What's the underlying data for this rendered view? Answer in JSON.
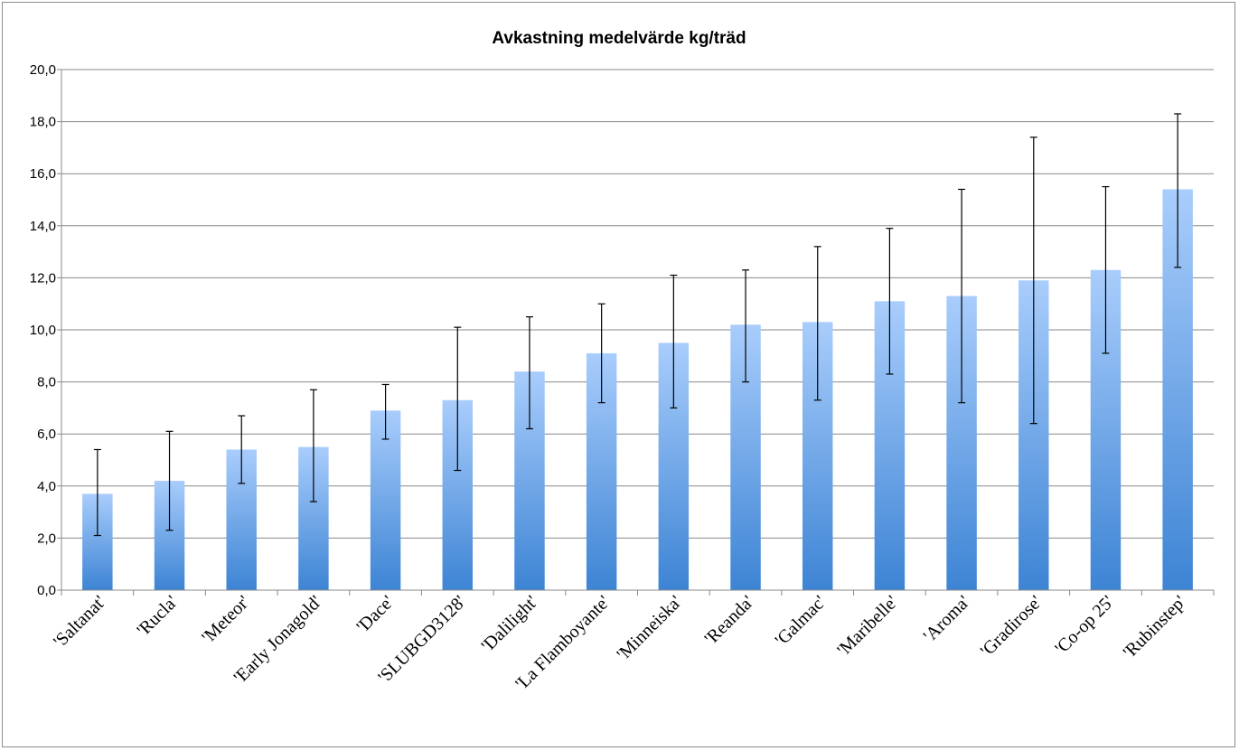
{
  "chart_data": {
    "type": "bar",
    "title": "Avkastning medelvärde kg/träd",
    "xlabel": "",
    "ylabel": "",
    "ylim": [
      0,
      20
    ],
    "ytick_step": 2,
    "ytick_labels": [
      "0,0",
      "2,0",
      "4,0",
      "6,0",
      "8,0",
      "10,0",
      "12,0",
      "14,0",
      "16,0",
      "18,0",
      "20,0"
    ],
    "grid": true,
    "legend": "none",
    "categories": [
      "'Saltanat'",
      "'Rucla'",
      "'Meteor'",
      "'Early Jonagold'",
      "'Dace'",
      "'SLUBGD3128'",
      "'Dalilight'",
      "'La Flamboyante'",
      "'Minneiska'",
      "'Reanda'",
      "'Galmac'",
      "'Maribelle'",
      "'Aroma'",
      "'Gradirose'",
      "'Co-op 25'",
      "'Rubinstep'"
    ],
    "values": [
      3.7,
      4.2,
      5.4,
      5.5,
      6.9,
      7.3,
      8.4,
      9.1,
      9.5,
      10.2,
      10.3,
      11.1,
      11.3,
      11.9,
      12.3,
      15.4
    ],
    "error_low": [
      2.1,
      2.3,
      4.1,
      3.4,
      5.8,
      4.6,
      6.2,
      7.2,
      7.0,
      8.0,
      7.3,
      8.3,
      7.2,
      6.4,
      9.1,
      12.4
    ],
    "error_high": [
      5.4,
      6.1,
      6.7,
      7.7,
      7.9,
      10.1,
      10.5,
      11.0,
      12.1,
      12.3,
      13.2,
      13.9,
      15.4,
      17.4,
      15.5,
      18.3
    ],
    "colors": {
      "bar_top": "#a9cdfc",
      "bar_bottom": "#3d84d4",
      "grid": "#888888",
      "axis": "#888888",
      "error_bar": "#000000"
    }
  }
}
